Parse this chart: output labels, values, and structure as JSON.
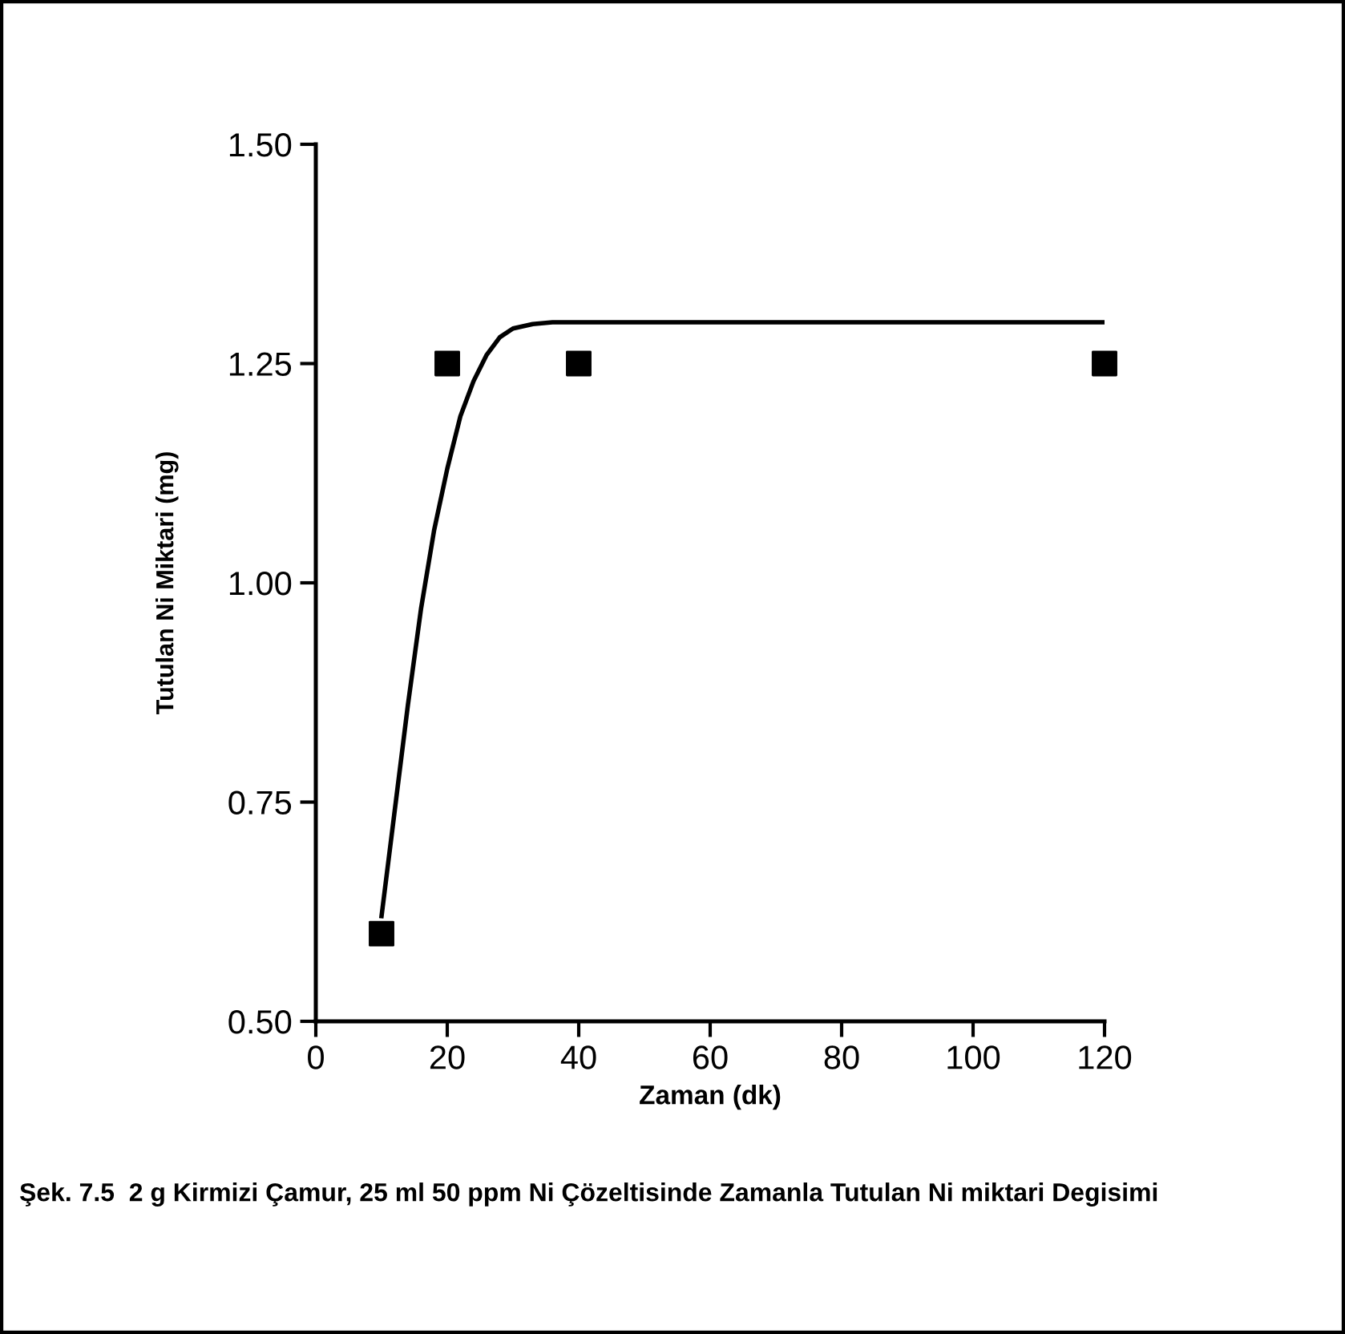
{
  "chart_data": {
    "type": "scatter",
    "xlabel": "Zaman (dk)",
    "ylabel": "Tutulan Ni Miktari (mg)",
    "annotations": [
      "Şek. 7.5  2 g Kirmizi Çamur, 25 ml 50 ppm Ni Çözeltisinde Zamanla Tutulan Ni miktari Degisimi"
    ],
    "series": [
      {
        "color": "#000000",
        "marker": "square",
        "x": [
          10,
          20,
          40,
          120
        ],
        "values": [
          0.6,
          1.25,
          1.25,
          1.25
        ]
      },
      {
        "type": "line",
        "color": "#000000",
        "marker": "none",
        "line_style": "solid",
        "x": [
          10,
          12,
          14,
          16,
          18,
          20,
          22,
          24,
          26,
          28,
          30,
          33,
          36,
          40,
          60,
          80,
          100,
          120
        ],
        "values": [
          0.62,
          0.74,
          0.86,
          0.97,
          1.06,
          1.13,
          1.19,
          1.23,
          1.26,
          1.28,
          1.29,
          1.295,
          1.297,
          1.297,
          1.297,
          1.297,
          1.297,
          1.297
        ]
      }
    ],
    "xlim": [
      0,
      120
    ],
    "xticks": [
      0,
      20,
      40,
      60,
      80,
      100,
      120
    ],
    "ylim": [
      0.5,
      1.5
    ],
    "yticks": [
      {
        "value": 0.5,
        "label": "0.50"
      },
      {
        "value": 0.75,
        "label": "0.75"
      },
      {
        "value": 1.0,
        "label": "1.00"
      },
      {
        "value": 1.25,
        "label": "1.25"
      },
      {
        "value": 1.5,
        "label": "1.50"
      }
    ],
    "grid": false,
    "legend": false
  }
}
